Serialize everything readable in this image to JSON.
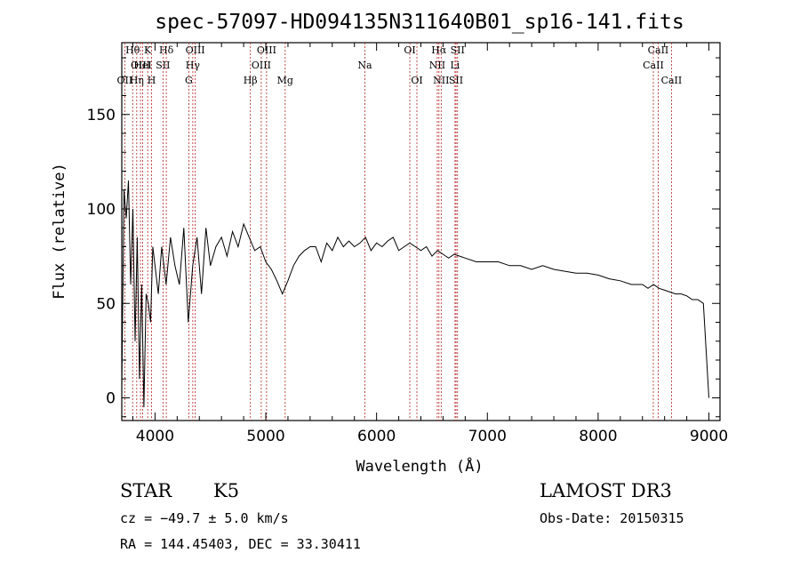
{
  "chart_data": {
    "type": "line",
    "title": "spec-57097-HD094135N311640B01_sp16-141.fits",
    "xlabel": "Wavelength (Å)",
    "ylabel": "Flux (relative)",
    "xlim": [
      3700,
      9100
    ],
    "ylim": [
      -12,
      188
    ],
    "xticks": [
      4000,
      5000,
      6000,
      7000,
      8000,
      9000
    ],
    "yticks": [
      0,
      50,
      100,
      150
    ],
    "series": [
      {
        "name": "flux",
        "x": [
          3700,
          3720,
          3740,
          3760,
          3780,
          3800,
          3820,
          3840,
          3860,
          3880,
          3900,
          3920,
          3940,
          3960,
          3980,
          4000,
          4030,
          4060,
          4100,
          4140,
          4180,
          4220,
          4260,
          4300,
          4340,
          4380,
          4420,
          4460,
          4500,
          4550,
          4600,
          4650,
          4700,
          4750,
          4800,
          4850,
          4900,
          4950,
          5000,
          5050,
          5100,
          5150,
          5200,
          5250,
          5300,
          5350,
          5400,
          5450,
          5500,
          5550,
          5600,
          5650,
          5700,
          5750,
          5800,
          5850,
          5900,
          5950,
          6000,
          6050,
          6100,
          6150,
          6200,
          6250,
          6300,
          6350,
          6400,
          6450,
          6500,
          6550,
          6600,
          6650,
          6700,
          6750,
          6800,
          6900,
          7000,
          7100,
          7200,
          7300,
          7400,
          7500,
          7600,
          7700,
          7800,
          7900,
          8000,
          8100,
          8200,
          8300,
          8400,
          8450,
          8500,
          8550,
          8600,
          8650,
          8700,
          8750,
          8800,
          8850,
          8900,
          8950,
          9000
        ],
        "values": [
          5,
          110,
          95,
          115,
          60,
          100,
          30,
          85,
          10,
          60,
          -5,
          55,
          50,
          40,
          80,
          70,
          55,
          80,
          60,
          85,
          70,
          60,
          90,
          40,
          70,
          85,
          55,
          90,
          70,
          80,
          85,
          75,
          88,
          80,
          92,
          85,
          78,
          80,
          72,
          68,
          62,
          55,
          62,
          70,
          75,
          78,
          80,
          80,
          72,
          82,
          78,
          85,
          80,
          83,
          80,
          82,
          85,
          78,
          82,
          80,
          83,
          85,
          78,
          80,
          82,
          80,
          78,
          80,
          75,
          78,
          76,
          74,
          76,
          75,
          74,
          72,
          72,
          72,
          70,
          70,
          68,
          70,
          68,
          67,
          66,
          66,
          65,
          63,
          62,
          60,
          60,
          58,
          60,
          58,
          57,
          56,
          55,
          55,
          54,
          52,
          52,
          50,
          0
        ]
      }
    ],
    "emission_lines": [
      {
        "label": "OII",
        "wl": 3727,
        "row": 3
      },
      {
        "label": "Hθ",
        "wl": 3798,
        "row": 1
      },
      {
        "label": "OIII",
        "wl": 3869,
        "row": 2
      },
      {
        "label": "Hη",
        "wl": 3835,
        "row": 3
      },
      {
        "label": "HeI",
        "wl": 3889,
        "row": 2
      },
      {
        "label": "K",
        "wl": 3934,
        "row": 1
      },
      {
        "label": "H",
        "wl": 3969,
        "row": 3
      },
      {
        "label": "SII",
        "wl": 4072,
        "row": 2
      },
      {
        "label": "Hδ",
        "wl": 4102,
        "row": 1
      },
      {
        "label": "G",
        "wl": 4305,
        "row": 3
      },
      {
        "label": "OIII",
        "wl": 4363,
        "row": 1
      },
      {
        "label": "Hγ",
        "wl": 4341,
        "row": 2
      },
      {
        "label": "Hβ",
        "wl": 4861,
        "row": 3
      },
      {
        "label": "OIII",
        "wl": 4959,
        "row": 2
      },
      {
        "label": "OIII",
        "wl": 5007,
        "row": 1
      },
      {
        "label": "Mg",
        "wl": 5175,
        "row": 3
      },
      {
        "label": "Na",
        "wl": 5894,
        "row": 2
      },
      {
        "label": "OI",
        "wl": 6300,
        "row": 1
      },
      {
        "label": "OI",
        "wl": 6364,
        "row": 3
      },
      {
        "label": "NII",
        "wl": 6548,
        "row": 2
      },
      {
        "label": "Hα",
        "wl": 6563,
        "row": 1
      },
      {
        "label": "NII",
        "wl": 6583,
        "row": 3
      },
      {
        "label": "Li",
        "wl": 6708,
        "row": 2
      },
      {
        "label": "SII",
        "wl": 6717,
        "row": 3
      },
      {
        "label": "SII",
        "wl": 6731,
        "row": 1
      },
      {
        "label": "CaII",
        "wl": 8498,
        "row": 2
      },
      {
        "label": "CaII",
        "wl": 8542,
        "row": 1
      },
      {
        "label": "CaII",
        "wl": 8662,
        "row": 3
      }
    ]
  },
  "info": {
    "class_text": "STAR",
    "subclass_text": "K5",
    "survey_text": "LAMOST DR3",
    "cz_text": "cz = −49.7 ± 5.0 km/s",
    "obsdate_text": "Obs-Date: 20150315",
    "radec_text": "RA = 144.45403, DEC =  33.30411"
  },
  "colors": {
    "line_marker": "#b22222",
    "spectrum": "#000000",
    "axes": "#000000"
  }
}
